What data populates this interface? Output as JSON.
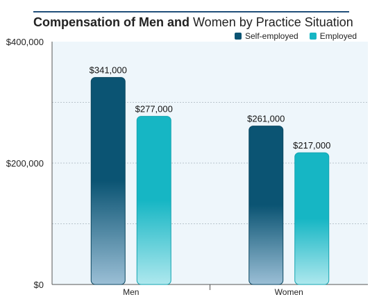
{
  "title": {
    "bold": "Compensation of Men and",
    "rest": "Women by Practice Situation"
  },
  "colors": {
    "self_employed_top": "#0b5473",
    "self_employed_bottom": "#9bbfd6",
    "employed_top": "#16b6c4",
    "employed_bottom": "#aee8ee",
    "plot_bg": "#eef6fb",
    "grid": "#b8c4cc"
  },
  "chart_data": {
    "type": "bar",
    "title": "Compensation of Men and Women by Practice Situation",
    "categories": [
      "Men",
      "Women"
    ],
    "series": [
      {
        "name": "Self-employed",
        "values": [
          341000,
          261000
        ],
        "labels": [
          "$341,000",
          "$261,000"
        ]
      },
      {
        "name": "Employed",
        "values": [
          277000,
          217000
        ],
        "labels": [
          "$277,000",
          "$217,000"
        ]
      }
    ],
    "ylim": [
      0,
      400000
    ],
    "y_ticks": [
      0,
      200000,
      400000
    ],
    "y_tick_labels": [
      "$0",
      "$200,000",
      "$400,000"
    ],
    "grid_values": [
      100000,
      200000,
      300000
    ],
    "grid": true,
    "legend": "top-right"
  }
}
